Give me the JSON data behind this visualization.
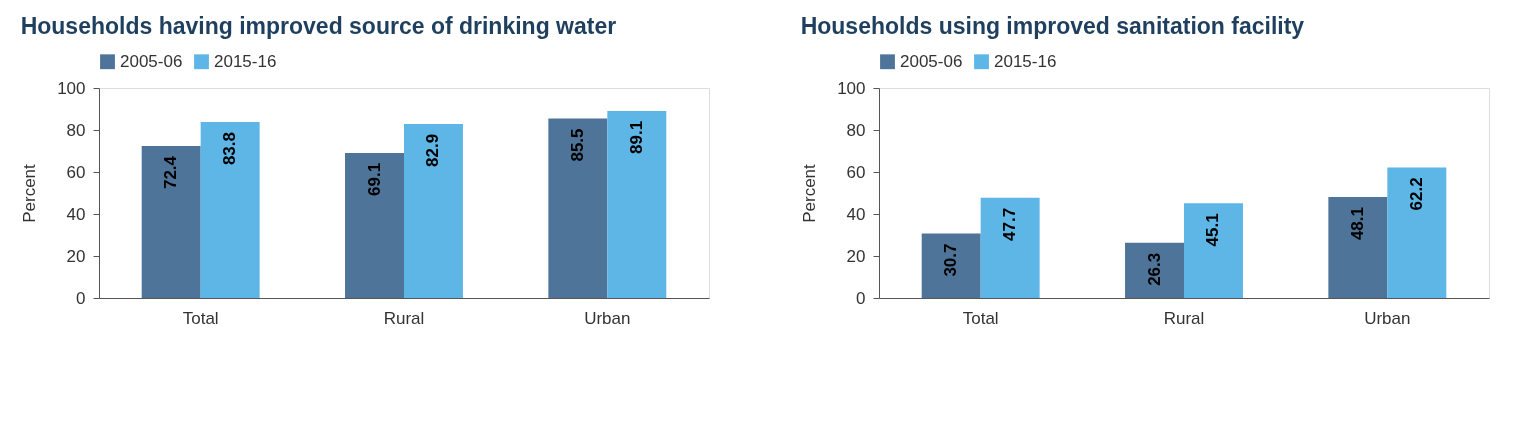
{
  "chart_data": [
    {
      "type": "bar",
      "title": "Households having improved source of drinking water",
      "ylabel": "Percent",
      "categories": [
        "Total",
        "Rural",
        "Urban"
      ],
      "series": [
        {
          "name": "2005-06",
          "color": "#4e7499",
          "values": [
            72.4,
            69.1,
            85.5
          ]
        },
        {
          "name": "2015-16",
          "color": "#5db6e6",
          "values": [
            83.8,
            82.9,
            89.1
          ]
        }
      ],
      "ylim": [
        0,
        100
      ],
      "yticks": [
        0,
        20,
        40,
        60,
        80,
        100
      ],
      "grid": false,
      "legend": "top",
      "data_labels": true
    },
    {
      "type": "bar",
      "title": "Households using improved sanitation facility",
      "ylabel": "Percent",
      "categories": [
        "Total",
        "Rural",
        "Urban"
      ],
      "series": [
        {
          "name": "2005-06",
          "color": "#4e7499",
          "values": [
            30.7,
            26.3,
            48.1
          ]
        },
        {
          "name": "2015-16",
          "color": "#5db6e6",
          "values": [
            47.7,
            45.1,
            62.2
          ]
        }
      ],
      "ylim": [
        0,
        100
      ],
      "yticks": [
        0,
        20,
        40,
        60,
        80,
        100
      ],
      "grid": false,
      "legend": "top",
      "data_labels": true
    }
  ]
}
